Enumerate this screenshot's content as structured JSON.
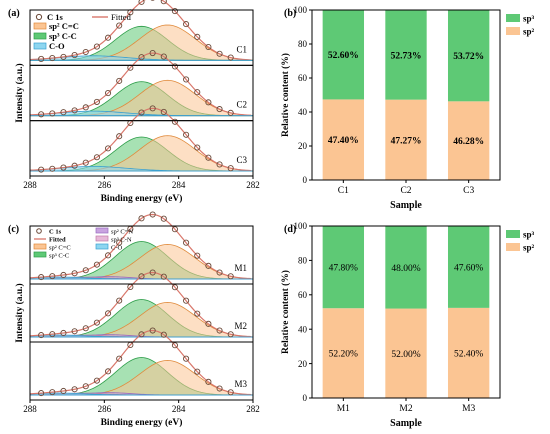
{
  "chart_data": [
    {
      "type": "line",
      "panel_label": "(a)",
      "xlabel": "Binding energy (eV)",
      "ylabel": "Intensity (a.u.)",
      "xlim": [
        288,
        282
      ],
      "x_ticks": [
        "288",
        "286",
        "284",
        "282"
      ],
      "legend": [
        "C 1s",
        "Fitted",
        "sp² C=C",
        "sp³ C-C",
        "C-O"
      ],
      "samples": [
        "C1",
        "C2",
        "C3"
      ],
      "grid": false,
      "peaks": {
        "sp2": {
          "center": 284.3,
          "width": 0.75,
          "height": 0.78
        },
        "sp3": {
          "center": 285.0,
          "width": 0.7,
          "height": 0.75
        },
        "CO": {
          "center": 286.3,
          "width": 0.9,
          "height": 0.1
        }
      }
    },
    {
      "type": "bar",
      "stacked": true,
      "panel_label": "(b)",
      "categories": [
        "C1",
        "C2",
        "C3"
      ],
      "xlabel": "Sample",
      "ylabel": "Relative content (%)",
      "ylim": [
        0,
        100
      ],
      "y_ticks": [
        "0",
        "20",
        "40",
        "60",
        "80",
        "100"
      ],
      "legend_position": "right",
      "series": [
        {
          "name": "sp²",
          "values": [
            47.4,
            47.27,
            46.28
          ],
          "labels": [
            "47.40%",
            "47.27%",
            "46.28%"
          ],
          "color": "#fbc593"
        },
        {
          "name": "sp³",
          "values": [
            52.6,
            52.73,
            53.72
          ],
          "labels": [
            "52.60%",
            "52.73%",
            "53.72%"
          ],
          "color": "#5ec975"
        }
      ]
    },
    {
      "type": "line",
      "panel_label": "(c)",
      "xlabel": "Binding energy (eV)",
      "ylabel": "Intensity (a.u.)",
      "xlim": [
        288,
        282
      ],
      "x_ticks": [
        "288",
        "286",
        "284",
        "282"
      ],
      "legend": [
        "C 1s",
        "Fitted",
        "sp² C=C",
        "sp³ C-C",
        "sp² C=N",
        "sp³ C-N",
        "C-O"
      ],
      "samples": [
        "M1",
        "M2",
        "M3"
      ],
      "grid": false,
      "peaks": {
        "sp2": {
          "center": 284.3,
          "width": 0.75,
          "height": 0.72
        },
        "sp3": {
          "center": 285.0,
          "width": 0.7,
          "height": 0.78
        },
        "CN2": {
          "center": 285.9,
          "width": 0.6,
          "height": 0.05
        },
        "CN3": {
          "center": 286.6,
          "width": 0.6,
          "height": 0.04
        },
        "CO": {
          "center": 287.2,
          "width": 0.7,
          "height": 0.04
        }
      }
    },
    {
      "type": "bar",
      "stacked": true,
      "panel_label": "(d)",
      "categories": [
        "M1",
        "M2",
        "M3"
      ],
      "xlabel": "Sample",
      "ylabel": "Relative content (%)",
      "ylim": [
        0,
        100
      ],
      "y_ticks": [
        "0",
        "20",
        "40",
        "60",
        "80",
        "100"
      ],
      "legend_position": "top-right",
      "series": [
        {
          "name": "sp²",
          "values": [
            52.2,
            52.0,
            52.4
          ],
          "labels": [
            "52.20%",
            "52.00%",
            "52.40%"
          ],
          "color": "#fbc593"
        },
        {
          "name": "sp³",
          "values": [
            47.8,
            48.0,
            47.6
          ],
          "labels": [
            "47.80%",
            "48.00%",
            "47.60%"
          ],
          "color": "#5ec975"
        }
      ]
    }
  ]
}
